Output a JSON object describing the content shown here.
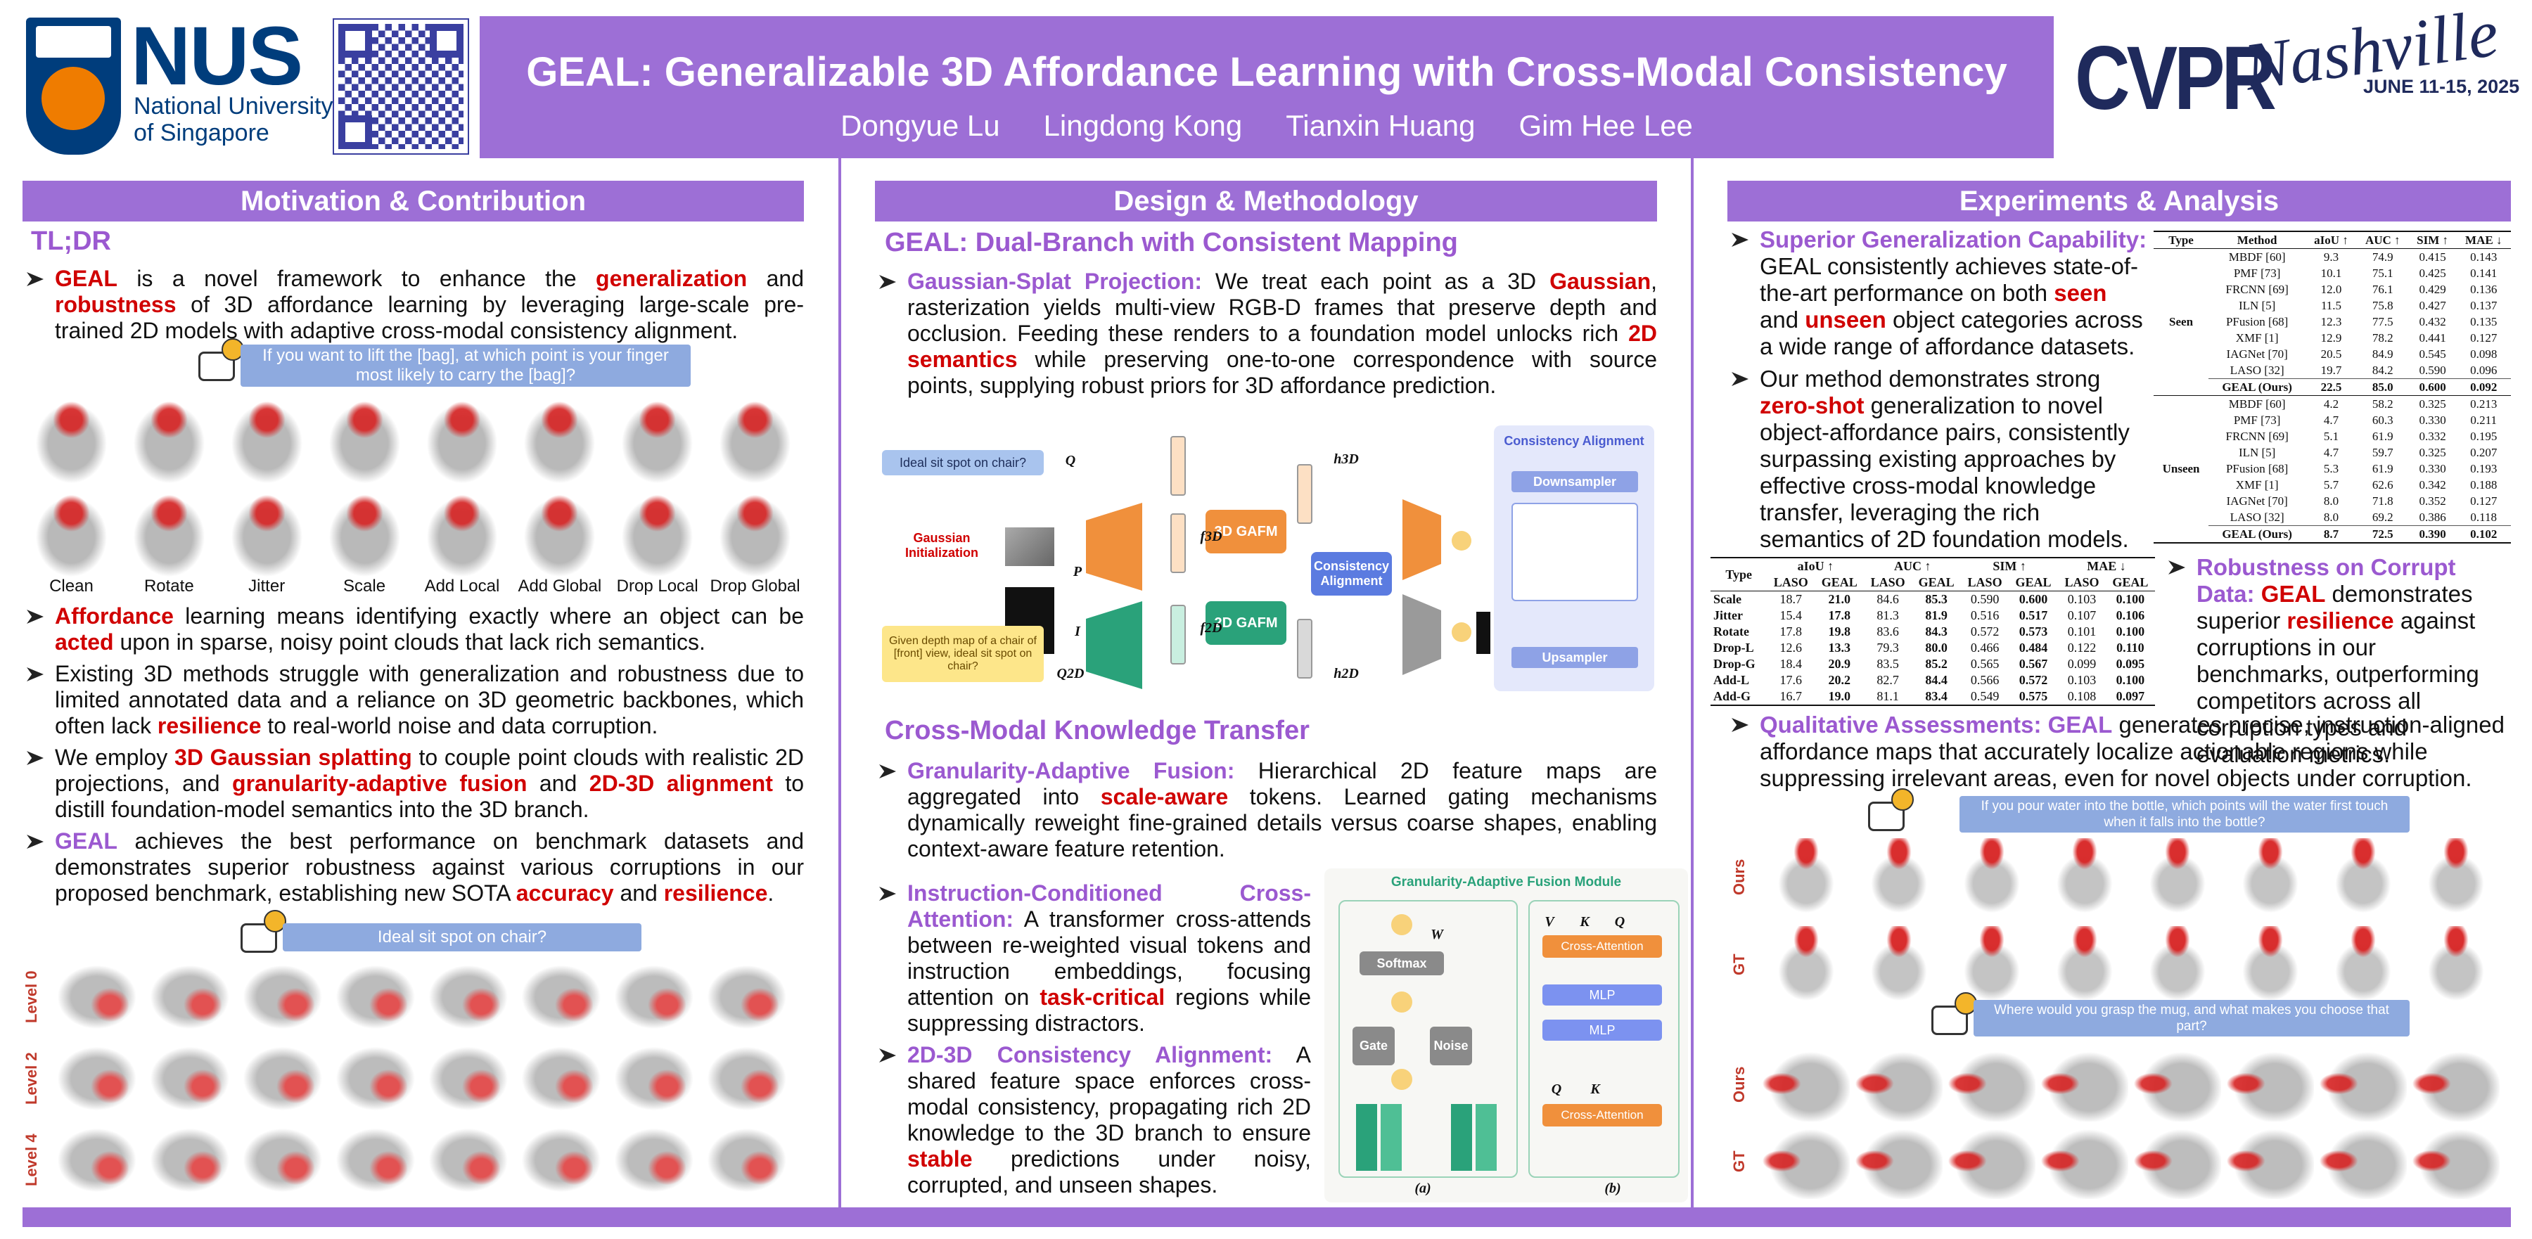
{
  "header": {
    "university": [
      "NUS",
      "National University",
      "of Singapore"
    ],
    "title": "GEAL: Generalizable 3D Affordance Learning with Cross-Modal Consistency",
    "authors": [
      "Dongyue Lu",
      "Lingdong Kong",
      "Tianxin Huang",
      "Gim Hee Lee"
    ],
    "conference": {
      "name": "CVPR",
      "city": "Nashville",
      "dates": "JUNE 11-15, 2025"
    }
  },
  "motivation": {
    "title": "Motivation & Contribution",
    "subtitle": "TL;DR",
    "intro": [
      [
        {
          "text": "GEAL",
          "style": "red"
        },
        " is a novel framework to enhance the ",
        {
          "text": "generalization",
          "style": "red"
        },
        " and ",
        {
          "text": "robustness",
          "style": "red"
        },
        " of 3D affordance learning by leveraging large-scale pre-trained 2D models with adaptive cross-modal consistency alignment."
      ]
    ],
    "figure_bags": {
      "question": "If you want to lift the [bag], at which point is your finger most likely to carry the [bag]?",
      "labels": [
        "Clean",
        "Rotate",
        "Jitter",
        "Scale",
        "Add Local",
        "Add Global",
        "Drop Local",
        "Drop Global"
      ]
    },
    "points": [
      [
        {
          "text": "Affordance",
          "style": "red"
        },
        " learning means identifying exactly where an object can be ",
        {
          "text": "acted",
          "style": "red"
        },
        " upon in sparse, noisy point clouds that lack rich semantics."
      ],
      [
        "Existing 3D methods struggle with generalization and robustness due to limited annotated data and a reliance on 3D geometric backbones, which often lack ",
        {
          "text": "resilience",
          "style": "red"
        },
        " to real-world noise and data corruption."
      ],
      [
        "We employ ",
        {
          "text": "3D Gaussian splatting",
          "style": "red"
        },
        " to couple point clouds with realistic 2D projections, and ",
        {
          "text": "granularity-adaptive fusion",
          "style": "red"
        },
        " and ",
        {
          "text": "2D-3D alignment",
          "style": "red"
        },
        " to distill foundation-model semantics into the 3D branch."
      ],
      [
        {
          "text": "GEAL",
          "style": "purple"
        },
        " achieves the best performance on benchmark datasets and demonstrates superior robustness against various corruptions in our proposed benchmark, establishing new SOTA ",
        {
          "text": "accuracy",
          "style": "red"
        },
        " and ",
        {
          "text": "resilience",
          "style": "red"
        },
        "."
      ]
    ],
    "figure_chair": {
      "question": "Ideal sit spot on chair?",
      "levels": [
        "Level 0",
        "Level 2",
        "Level 4"
      ]
    }
  },
  "design": {
    "title": "Design & Methodology",
    "heading_a": "GEAL: Dual-Branch with Consistent Mapping",
    "points_a": [
      [
        {
          "text": "Gaussian-Splat Projection:",
          "style": "lead"
        },
        " We treat each point as a 3D ",
        {
          "text": "Gaussian",
          "style": "red"
        },
        ", rasterization yields multi-view RGB-D frames that preserve depth and occlusion. Feeding these renders to a foundation model unlocks rich ",
        {
          "text": "2D semantics",
          "style": "red"
        },
        " while preserving one-to-one correspondence with source points, supplying robust priors for 3D affordance prediction."
      ]
    ],
    "pipeline": {
      "query": "Ideal sit spot on chair?",
      "init": "Gaussian Initialization",
      "query_2d": "Given depth map of a chair of [front] view, ideal sit spot on chair?",
      "gafm_3d": "3D GAFM",
      "gafm_2d": "2D GAFM",
      "consistency": "Consistency Alignment",
      "panel_title": "Consistency Alignment",
      "down": "Downsampler",
      "up": "Upsampler",
      "notation": [
        "Q",
        "P",
        "I",
        "Q2D",
        "h3D",
        "h2D",
        "f3D",
        "f2D"
      ]
    },
    "heading_b": "Cross-Modal Knowledge Transfer",
    "points_b": [
      [
        {
          "text": "Granularity-Adaptive Fusion:",
          "style": "lead"
        },
        " Hierarchical 2D feature maps are aggregated into ",
        {
          "text": "scale-aware",
          "style": "red"
        },
        " tokens. Learned gating mechanisms dynamically reweight fine-grained details versus coarse shapes, enabling context-aware feature retention."
      ]
    ],
    "points_c": [
      [
        {
          "text": "Instruction-Conditioned Cross-Attention:",
          "style": "lead"
        },
        " A transformer cross-attends between re-weighted visual tokens and instruction embeddings, focusing attention on ",
        {
          "text": "task-critical",
          "style": "red"
        },
        " regions while suppressing distractors."
      ],
      [
        {
          "text": "2D-3D Consistency Alignment:",
          "style": "lead"
        },
        " A shared feature space enforces cross-modal consistency, propagating rich 2D knowledge to the 3D branch to ensure ",
        {
          "text": "stable",
          "style": "red"
        },
        " predictions under noisy, corrupted, and unseen shapes."
      ]
    ],
    "fusion": {
      "title": "Granularity-Adaptive Fusion Module",
      "softmax": "Softmax",
      "gate": "Gate",
      "noise": "Noise",
      "attention": "Cross-Attention",
      "mlp": "MLP",
      "v": "V",
      "k": "K",
      "q": "Q",
      "w": "W",
      "panel_a": "(a)",
      "panel_b": "(b)"
    }
  },
  "experiments": {
    "title": "Experiments & Analysis",
    "points_a": [
      [
        {
          "text": "Superior Generalization Capability:",
          "style": "lead"
        },
        " GEAL consistently achieves state-of-the-art performance on both ",
        {
          "text": "seen",
          "style": "red"
        },
        " and ",
        {
          "text": "unseen",
          "style": "red"
        },
        " object categories across a wide range of affordance datasets."
      ],
      [
        "Our method demonstrates strong ",
        {
          "text": "zero-shot",
          "style": "red"
        },
        " generalization to novel object-affordance pairs, consistently surpassing existing approaches by effective cross-modal knowledge transfer, leveraging the rich semantics of 2D foundation models."
      ]
    ],
    "table_main": {
      "columns": [
        "Type",
        "Method",
        "aIoU ↑",
        "AUC ↑",
        "SIM ↑",
        "MAE ↓"
      ],
      "groups": [
        {
          "type": "Seen",
          "rows": [
            [
              "MBDF [60]",
              "9.3",
              "74.9",
              "0.415",
              "0.143"
            ],
            [
              "PMF [73]",
              "10.1",
              "75.1",
              "0.425",
              "0.141"
            ],
            [
              "FRCNN [69]",
              "12.0",
              "76.1",
              "0.429",
              "0.136"
            ],
            [
              "ILN [5]",
              "11.5",
              "75.8",
              "0.427",
              "0.137"
            ],
            [
              "PFusion [68]",
              "12.3",
              "77.5",
              "0.432",
              "0.135"
            ],
            [
              "XMF [1]",
              "12.9",
              "78.2",
              "0.441",
              "0.127"
            ],
            [
              "IAGNet [70]",
              "20.5",
              "84.9",
              "0.545",
              "0.098"
            ],
            [
              "LASO [32]",
              "19.7",
              "84.2",
              "0.590",
              "0.096"
            ],
            [
              "GEAL (Ours)",
              "22.5",
              "85.0",
              "0.600",
              "0.092"
            ]
          ]
        },
        {
          "type": "Unseen",
          "rows": [
            [
              "MBDF [60]",
              "4.2",
              "58.2",
              "0.325",
              "0.213"
            ],
            [
              "PMF [73]",
              "4.7",
              "60.3",
              "0.330",
              "0.211"
            ],
            [
              "FRCNN [69]",
              "5.1",
              "61.9",
              "0.332",
              "0.195"
            ],
            [
              "ILN [5]",
              "4.7",
              "59.7",
              "0.325",
              "0.207"
            ],
            [
              "PFusion [68]",
              "5.3",
              "61.9",
              "0.330",
              "0.193"
            ],
            [
              "XMF [1]",
              "5.7",
              "62.6",
              "0.342",
              "0.188"
            ],
            [
              "IAGNet [70]",
              "8.0",
              "71.8",
              "0.352",
              "0.127"
            ],
            [
              "LASO [32]",
              "8.0",
              "69.2",
              "0.386",
              "0.118"
            ],
            [
              "GEAL (Ours)",
              "8.7",
              "72.5",
              "0.390",
              "0.102"
            ]
          ]
        }
      ]
    },
    "table_robust": {
      "type_header": "Type",
      "metrics": [
        "aIoU ↑",
        "AUC ↑",
        "SIM ↑",
        "MAE ↓"
      ],
      "subcolumns": [
        "LASO",
        "GEAL"
      ],
      "rows": [
        [
          "Scale",
          "18.7",
          "21.0",
          "84.6",
          "85.3",
          "0.590",
          "0.600",
          "0.103",
          "0.100"
        ],
        [
          "Jitter",
          "15.4",
          "17.8",
          "81.3",
          "81.9",
          "0.516",
          "0.517",
          "0.107",
          "0.106"
        ],
        [
          "Rotate",
          "17.8",
          "19.8",
          "83.6",
          "84.3",
          "0.572",
          "0.573",
          "0.101",
          "0.100"
        ],
        [
          "Drop-L",
          "12.6",
          "13.3",
          "79.3",
          "80.0",
          "0.466",
          "0.484",
          "0.122",
          "0.110"
        ],
        [
          "Drop-G",
          "18.4",
          "20.9",
          "83.5",
          "85.2",
          "0.565",
          "0.567",
          "0.099",
          "0.095"
        ],
        [
          "Add-L",
          "17.6",
          "20.2",
          "82.7",
          "84.4",
          "0.566",
          "0.572",
          "0.103",
          "0.100"
        ],
        [
          "Add-G",
          "16.7",
          "19.0",
          "81.1",
          "83.4",
          "0.549",
          "0.575",
          "0.108",
          "0.097"
        ]
      ]
    },
    "points_b": [
      [
        {
          "text": "Robustness on Corrupt Data: ",
          "style": "lead"
        },
        {
          "text": "GEAL",
          "style": "red"
        },
        " demonstrates superior ",
        {
          "text": "resilience",
          "style": "red"
        },
        " against corruptions in our benchmarks, outperforming competitors across all corruption types and evaluation metrics."
      ]
    ],
    "points_c": [
      [
        {
          "text": "Qualitative Assessments: GEAL",
          "style": "lead"
        },
        " generates precise, instruction-aligned affordance maps that accurately localize actionable regions while suppressing irrelevant areas, even for novel objects under corruption."
      ]
    ],
    "qualitative": {
      "question_a": "If you pour water into the bottle, which points will the water first touch when it falls into the bottle?",
      "question_b": "Where would you grasp the mug, and what makes you choose that part?",
      "row_labels": [
        "Ours",
        "GT",
        "Ours",
        "GT"
      ]
    }
  }
}
